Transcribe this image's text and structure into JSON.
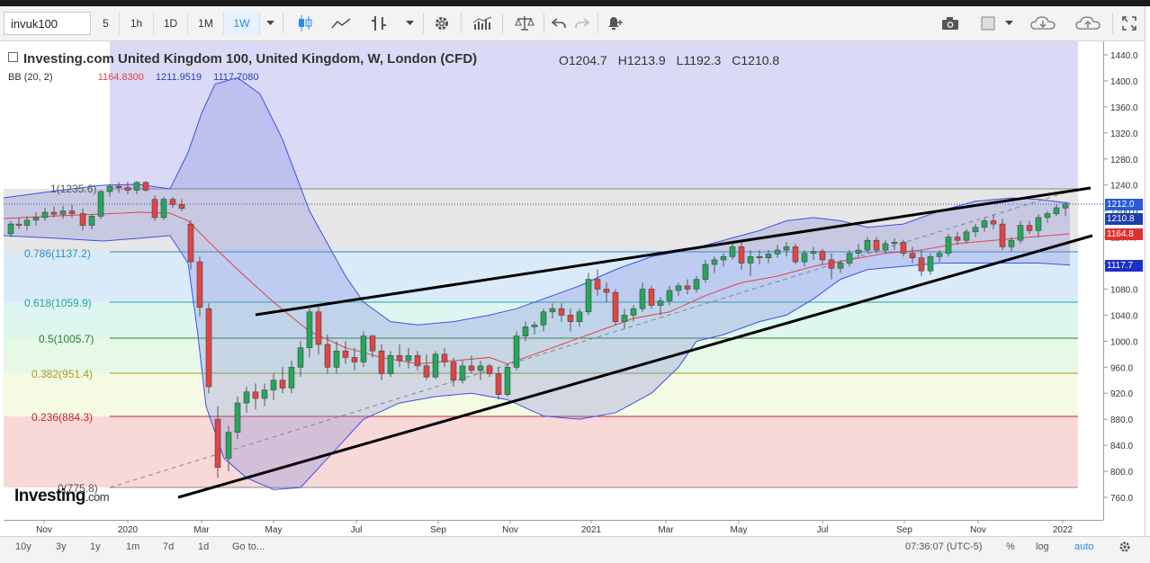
{
  "toolbar": {
    "symbol": "invuk100",
    "intervals": [
      "5",
      "1h",
      "1D",
      "1M",
      "1W"
    ],
    "active_interval": "1W"
  },
  "legend": {
    "title": "Investing.com United Kingdom 100, United Kingdom, W, London (CFD)",
    "open_label": "O",
    "open": "1204.7",
    "high_label": "H",
    "high": "1213.9",
    "low_label": "L",
    "low": "1192.3",
    "close_label": "C",
    "close": "1210.8",
    "bb_label": "BB (20, 2)",
    "bb_mid": "1164.8300",
    "bb_upper": "1211.9519",
    "bb_lower": "1117.7080"
  },
  "price_axis": {
    "ticks": [
      "1440.0",
      "1400.0",
      "1360.0",
      "1320.0",
      "1280.0",
      "1240.0",
      "1200.0",
      "1160.0",
      "1120.0",
      "1080.0",
      "1040.0",
      "1000.0",
      "960.0",
      "920.0",
      "880.0",
      "840.0",
      "800.0",
      "760.0"
    ],
    "tags": {
      "last": "1212.0",
      "close": "1210.8",
      "bb_mid": "1164.8",
      "bb_lower": "1117.7"
    }
  },
  "time_axis": {
    "labels": [
      "Nov",
      "2020",
      "Mar",
      "May",
      "Jul",
      "Sep",
      "Nov",
      "2021",
      "Mar",
      "May",
      "Jul",
      "Sep",
      "Nov",
      "2022"
    ]
  },
  "fib_levels": [
    {
      "label": "1(1235.6)",
      "color": "#555555"
    },
    {
      "label": "0.786(1137.2)",
      "color": "#2b8fc9"
    },
    {
      "label": "0.618(1059.9)",
      "color": "#26a69a"
    },
    {
      "label": "0.5(1005.7)",
      "color": "#2e7d32"
    },
    {
      "label": "0.382(951.4)",
      "color": "#9e9d24"
    },
    {
      "label": "0.236(884.3)",
      "color": "#c62828"
    },
    {
      "label": "0(775.8)",
      "color": "#555555"
    }
  ],
  "bottom_bar": {
    "ranges": [
      "10y",
      "3y",
      "1y",
      "1m",
      "7d",
      "1d"
    ],
    "goto": "Go to...",
    "clock": "07:36:07 (UTC-5)",
    "percent": "%",
    "log": "log",
    "auto": "auto"
  },
  "logo": {
    "brand": "Investing",
    "suffix": ".com"
  },
  "colors": {
    "up": "#26a65b",
    "down": "#e04545",
    "bb_band": "#3f51e6",
    "bb_fill": "#b9bcef",
    "bb_mid": "#e04545",
    "accent": "#2a8be8"
  },
  "icons": [
    "candles-icon",
    "line-chart-icon",
    "bars-icon",
    "dropdown-icon",
    "settings-gear-icon",
    "indicators-icon",
    "scales-icon",
    "undo-icon",
    "redo-icon",
    "alert-bell-icon",
    "camera-icon",
    "color-square-icon",
    "cloud-download-icon",
    "cloud-upload-icon",
    "fullscreen-icon"
  ]
}
